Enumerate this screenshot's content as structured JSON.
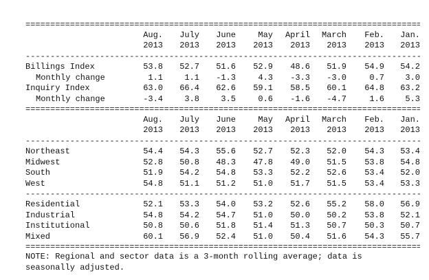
{
  "header": {
    "months": [
      "Aug.",
      "July",
      "June",
      "May",
      "April",
      "March",
      "Feb.",
      "Jan."
    ],
    "years": [
      "2013",
      "2013",
      "2013",
      "2013",
      "2013",
      "2013",
      "2013",
      "2013"
    ]
  },
  "section1": [
    {
      "label": "Billings Index",
      "values": [
        "53.8",
        "52.7",
        "51.6",
        "52.9",
        "48.6",
        "51.9",
        "54.9",
        "54.2"
      ]
    },
    {
      "label": "Monthly change",
      "values": [
        "1.1",
        "1.1",
        "-1.3",
        "4.3",
        "-3.3",
        "-3.0",
        "0.7",
        "3.0"
      ]
    },
    {
      "label": "Inquiry Index",
      "values": [
        "63.0",
        "66.4",
        "62.6",
        "59.1",
        "58.5",
        "60.1",
        "64.8",
        "63.2"
      ]
    },
    {
      "label": "Monthly change",
      "values": [
        "-3.4",
        "3.8",
        "3.5",
        "0.6",
        "-1.6",
        "-4.7",
        "1.6",
        "5.3"
      ]
    }
  ],
  "section2": [
    {
      "label": "Northeast",
      "values": [
        "54.4",
        "54.3",
        "55.6",
        "52.7",
        "52.3",
        "52.0",
        "54.3",
        "53.4"
      ]
    },
    {
      "label": "Midwest",
      "values": [
        "52.8",
        "50.8",
        "48.3",
        "47.8",
        "49.0",
        "51.5",
        "53.8",
        "54.8"
      ]
    },
    {
      "label": "South",
      "values": [
        "51.9",
        "54.2",
        "54.8",
        "53.3",
        "52.2",
        "52.6",
        "53.4",
        "52.0"
      ]
    },
    {
      "label": "West",
      "values": [
        "54.8",
        "51.1",
        "51.2",
        "51.0",
        "51.7",
        "51.5",
        "53.4",
        "53.3"
      ]
    }
  ],
  "section3": [
    {
      "label": "Residential",
      "values": [
        "52.1",
        "53.3",
        "54.0",
        "53.2",
        "52.6",
        "55.2",
        "58.0",
        "56.9"
      ]
    },
    {
      "label": "Industrial",
      "values": [
        "54.8",
        "54.2",
        "54.7",
        "51.0",
        "50.0",
        "50.2",
        "53.8",
        "52.1"
      ]
    },
    {
      "label": "Institutional",
      "values": [
        "50.8",
        "50.6",
        "51.8",
        "51.4",
        "51.3",
        "50.7",
        "50.3",
        "50.7"
      ]
    },
    {
      "label": "Mixed",
      "values": [
        "60.1",
        "56.9",
        "52.4",
        "51.0",
        "50.4",
        "51.6",
        "54.3",
        "55.7"
      ]
    }
  ],
  "note": "NOTE: Regional and sector data is a 3-month rolling average; data is\nseasonally adjusted."
}
